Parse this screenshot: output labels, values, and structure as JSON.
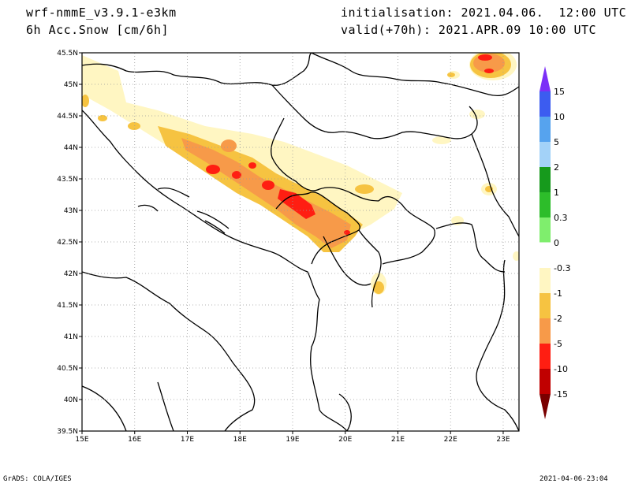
{
  "header": {
    "model": "wrf-nmmE_v3.9.1-e3km",
    "variable": "6h Acc.Snow [cm/6h]",
    "init": "initialisation: 2021.04.06.  12:00 UTC",
    "valid": "valid(+70h): 2021.APR.09 10:00 UTC"
  },
  "footer": {
    "credit": "GrADS: COLA/IGES",
    "timestamp": "2021-04-06-23:04"
  },
  "map": {
    "lon_range": [
      15,
      23.3
    ],
    "lat_range": [
      39.5,
      45.5
    ],
    "lon_ticks": [
      "15E",
      "16E",
      "17E",
      "18E",
      "19E",
      "20E",
      "21E",
      "22E",
      "23E"
    ],
    "lat_ticks": [
      "45.5N",
      "45N",
      "44.5N",
      "44N",
      "43.5N",
      "43N",
      "42.5N",
      "42N",
      "41.5N",
      "41N",
      "40.5N",
      "40N",
      "39.5N"
    ]
  },
  "colorbar": {
    "labels": [
      "15",
      "10",
      "5",
      "2",
      "1",
      "0.3",
      "0",
      "-0.3",
      "-1",
      "-2",
      "-5",
      "-10",
      "-15"
    ],
    "colors": [
      "#7b2ff7",
      "#3c5cf0",
      "#56a3ee",
      "#a3d2f8",
      "#169a1c",
      "#2dbd2a",
      "#7fee6d",
      "#ffffff",
      "#fff6c2",
      "#f6c341",
      "#f79a49",
      "#ff1e12",
      "#c00000",
      "#7a0000"
    ]
  }
}
